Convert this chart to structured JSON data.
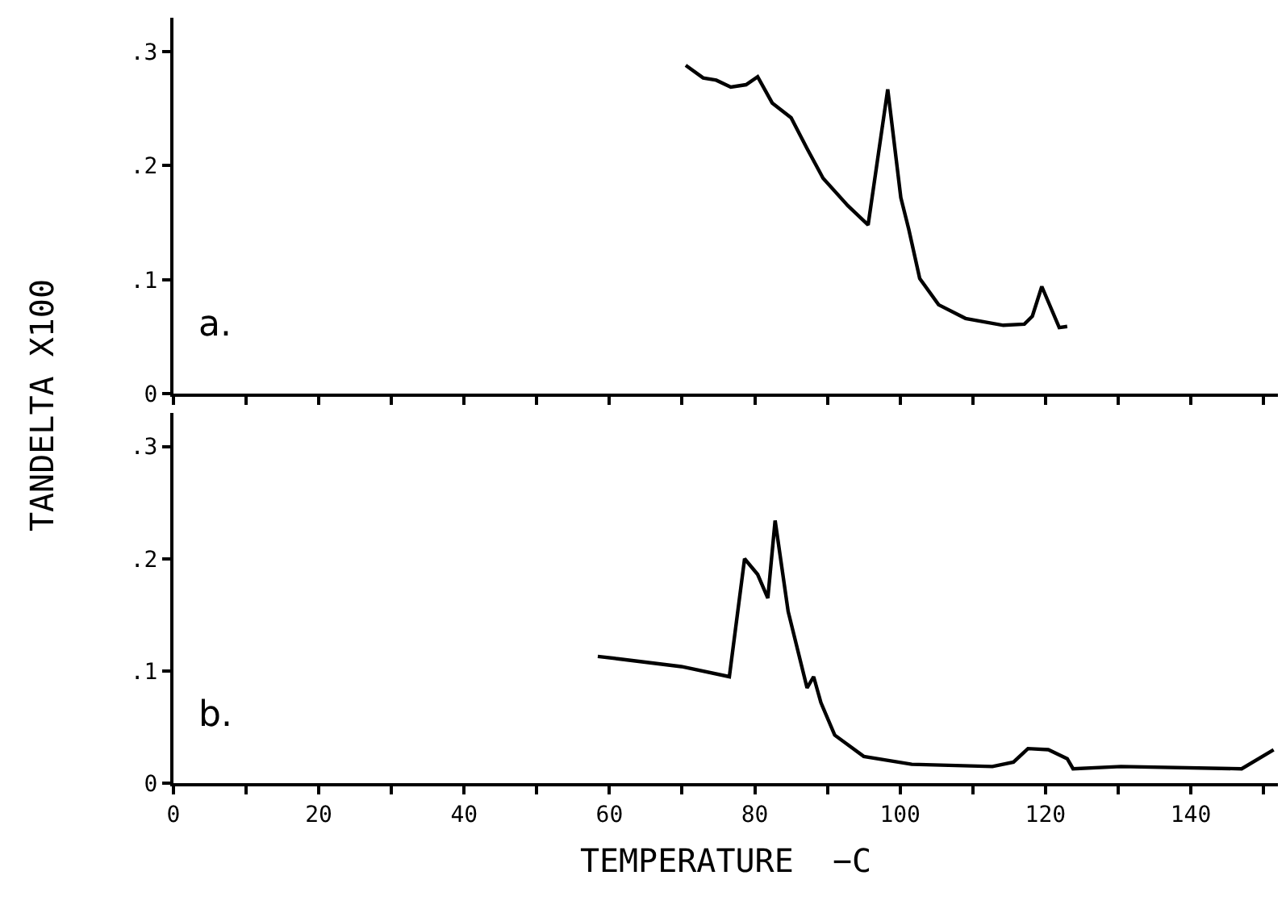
{
  "chart_data": [
    {
      "type": "line",
      "ylabel": "TANDELTA X100",
      "annotations": [
        "a."
      ],
      "tick_labels": "y",
      "marker": "none",
      "line_style": "solid",
      "xlim": [
        0,
        152
      ],
      "ylim": [
        0,
        0.33
      ],
      "xticks": [
        0,
        10,
        20,
        30,
        40,
        50,
        60,
        70,
        80,
        90,
        100,
        110,
        120,
        130,
        140,
        150
      ],
      "yticks": [
        0,
        {
          "value": 0.1,
          "label": ".1"
        },
        {
          "value": 0.2,
          "label": ".2"
        },
        {
          "value": 0.3,
          "label": ".3"
        }
      ],
      "series": [
        {
          "color": "#000000",
          "x": [
            70.5,
            72.9,
            74.7,
            76.7,
            78.8,
            80.4,
            82.4,
            85.0,
            87.2,
            89.4,
            92.8,
            95.6,
            98.3,
            100.1,
            101.2,
            102.7,
            105.3,
            109.0,
            114.2,
            117.1,
            118.2,
            119.5,
            121.9,
            123.0
          ],
          "values": [
            0.288,
            0.277,
            0.275,
            0.269,
            0.271,
            0.278,
            0.255,
            0.242,
            0.215,
            0.189,
            0.165,
            0.148,
            0.267,
            0.172,
            0.144,
            0.101,
            0.078,
            0.066,
            0.06,
            0.061,
            0.068,
            0.094,
            0.058,
            0.059
          ]
        }
      ]
    },
    {
      "type": "line",
      "xlabel": "TEMPERATURE  −C",
      "annotations": [
        "b."
      ],
      "marker": "none",
      "line_style": "solid",
      "xlim": [
        0,
        152
      ],
      "ylim": [
        0,
        0.33
      ],
      "xticks": [
        0,
        {
          "value": 10,
          "label": null
        },
        20,
        {
          "value": 30,
          "label": null
        },
        40,
        {
          "value": 50,
          "label": null
        },
        60,
        {
          "value": 70,
          "label": null
        },
        80,
        {
          "value": 90,
          "label": null
        },
        100,
        {
          "value": 110,
          "label": null
        },
        120,
        {
          "value": 130,
          "label": null
        },
        140,
        {
          "value": 150,
          "label": null
        }
      ],
      "yticks": [
        0,
        {
          "value": 0.1,
          "label": ".1"
        },
        {
          "value": 0.2,
          "label": ".2"
        },
        {
          "value": 0.3,
          "label": ".3"
        }
      ],
      "series": [
        {
          "color": "#000000",
          "x": [
            58.4,
            61.1,
            69.9,
            76.5,
            78.6,
            80.4,
            81.8,
            82.8,
            84.6,
            87.2,
            88.1,
            89.1,
            91.0,
            95.0,
            101.6,
            112.7,
            115.6,
            117.6,
            120.4,
            123.0,
            123.8,
            130.4,
            147.0,
            151.4
          ],
          "values": [
            0.113,
            0.111,
            0.104,
            0.095,
            0.2,
            0.186,
            0.165,
            0.234,
            0.153,
            0.085,
            0.095,
            0.072,
            0.043,
            0.024,
            0.017,
            0.015,
            0.019,
            0.031,
            0.03,
            0.022,
            0.013,
            0.015,
            0.013,
            0.03
          ]
        }
      ]
    }
  ]
}
